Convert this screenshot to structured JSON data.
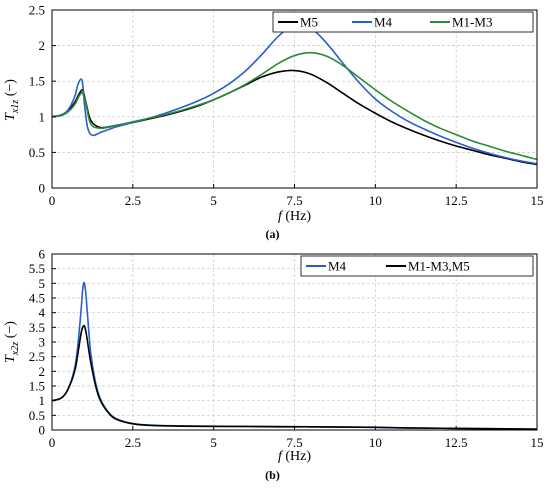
{
  "chart_data": [
    {
      "type": "line",
      "caption": "(a)",
      "ylabel_symbol": "T",
      "ylabel_subscript": "x1z",
      "ylabel_unit": " (−)",
      "xlabel_symbol": "f",
      "xlabel_unit": " (Hz)",
      "xlim": [
        0,
        15
      ],
      "ylim": [
        0,
        2.5
      ],
      "xticks": [
        0,
        2.5,
        5,
        7.5,
        10,
        12.5,
        15
      ],
      "xtick_labels": [
        "0",
        "2.5",
        "5",
        "7.5",
        "10",
        "12.5",
        "15"
      ],
      "yticks": [
        0,
        0.5,
        1,
        1.5,
        2,
        2.5
      ],
      "ytick_labels": [
        "0",
        "0.5",
        "1",
        "1.5",
        "2",
        "2.5"
      ],
      "grid": true,
      "legend_position": "top-right",
      "series": [
        {
          "name": "M5",
          "color": "#000000",
          "x": [
            0,
            0.3,
            0.5,
            0.7,
            0.85,
            0.95,
            1.05,
            1.2,
            1.5,
            2,
            2.5,
            3,
            3.5,
            4,
            4.5,
            5,
            5.5,
            6,
            6.5,
            7,
            7.5,
            8,
            8.5,
            9,
            9.5,
            10,
            10.5,
            11,
            11.5,
            12,
            12.5,
            13,
            13.5,
            14,
            14.5,
            15
          ],
          "y": [
            1.0,
            1.02,
            1.08,
            1.2,
            1.33,
            1.37,
            1.2,
            0.95,
            0.85,
            0.88,
            0.92,
            0.97,
            1.02,
            1.08,
            1.15,
            1.24,
            1.34,
            1.45,
            1.56,
            1.63,
            1.65,
            1.6,
            1.48,
            1.33,
            1.18,
            1.05,
            0.93,
            0.83,
            0.74,
            0.66,
            0.59,
            0.53,
            0.47,
            0.42,
            0.37,
            0.33
          ]
        },
        {
          "name": "M4",
          "color": "#2a5ec8",
          "x": [
            0,
            0.3,
            0.5,
            0.7,
            0.8,
            0.9,
            0.95,
            1.0,
            1.1,
            1.25,
            1.5,
            2,
            2.5,
            3,
            3.5,
            4,
            4.5,
            5,
            5.5,
            6,
            6.5,
            7,
            7.5,
            8,
            8.5,
            9,
            9.5,
            10,
            10.5,
            11,
            11.5,
            12,
            12.5,
            13,
            13.5,
            14,
            14.5,
            15
          ],
          "y": [
            1.0,
            1.03,
            1.1,
            1.28,
            1.45,
            1.53,
            1.45,
            1.2,
            0.85,
            0.74,
            0.78,
            0.86,
            0.92,
            0.98,
            1.05,
            1.13,
            1.22,
            1.33,
            1.47,
            1.65,
            1.88,
            2.13,
            2.3,
            2.25,
            2.03,
            1.75,
            1.48,
            1.25,
            1.08,
            0.94,
            0.83,
            0.73,
            0.64,
            0.56,
            0.49,
            0.43,
            0.38,
            0.34
          ]
        },
        {
          "name": "M1-M3",
          "color": "#2b8a36",
          "x": [
            0,
            0.3,
            0.5,
            0.7,
            0.85,
            0.95,
            1.05,
            1.2,
            1.5,
            2,
            2.5,
            3,
            3.5,
            4,
            4.5,
            5,
            5.5,
            6,
            6.5,
            7,
            7.5,
            8,
            8.5,
            9,
            9.5,
            10,
            10.5,
            11,
            11.5,
            12,
            12.5,
            13,
            13.5,
            14,
            14.5,
            15
          ],
          "y": [
            1.0,
            1.02,
            1.07,
            1.17,
            1.3,
            1.33,
            1.18,
            0.9,
            0.84,
            0.88,
            0.93,
            0.98,
            1.03,
            1.09,
            1.16,
            1.24,
            1.34,
            1.46,
            1.6,
            1.75,
            1.86,
            1.9,
            1.85,
            1.72,
            1.55,
            1.38,
            1.22,
            1.08,
            0.95,
            0.84,
            0.75,
            0.66,
            0.59,
            0.52,
            0.46,
            0.4
          ]
        }
      ]
    },
    {
      "type": "line",
      "caption": "(b)",
      "ylabel_symbol": "T",
      "ylabel_subscript": "x2z",
      "ylabel_unit": " (−)",
      "xlabel_symbol": "f",
      "xlabel_unit": " (Hz)",
      "xlim": [
        0,
        15
      ],
      "ylim": [
        0,
        6
      ],
      "xticks": [
        0,
        2.5,
        5,
        7.5,
        10,
        12.5,
        15
      ],
      "xtick_labels": [
        "0",
        "2.5",
        "5",
        "7.5",
        "10",
        "12.5",
        "15"
      ],
      "yticks": [
        0,
        0.5,
        1,
        1.5,
        2,
        2.5,
        3,
        3.5,
        4,
        4.5,
        5,
        5.5,
        6
      ],
      "ytick_labels": [
        "0",
        "0.5",
        "1",
        "1.5",
        "2",
        "2.5",
        "3",
        "3.5",
        "4",
        "4.5",
        "5",
        "5.5",
        "6"
      ],
      "grid": true,
      "legend_position": "top-right",
      "series": [
        {
          "name": "M4",
          "color": "#2a5ec8",
          "x": [
            0,
            0.3,
            0.5,
            0.7,
            0.8,
            0.9,
            0.95,
            1.0,
            1.05,
            1.1,
            1.2,
            1.35,
            1.5,
            1.75,
            2,
            2.5,
            3,
            4,
            5,
            6,
            7,
            8,
            9,
            10,
            11,
            12,
            13,
            14,
            15
          ],
          "y": [
            1.0,
            1.1,
            1.4,
            2.1,
            2.9,
            4.1,
            4.8,
            5.02,
            4.6,
            3.9,
            2.6,
            1.6,
            1.05,
            0.6,
            0.38,
            0.22,
            0.17,
            0.14,
            0.13,
            0.12,
            0.12,
            0.11,
            0.1,
            0.09,
            0.07,
            0.06,
            0.05,
            0.04,
            0.03
          ]
        },
        {
          "name": "M1-M3,M5",
          "color": "#000000",
          "x": [
            0,
            0.3,
            0.5,
            0.7,
            0.8,
            0.9,
            0.95,
            1.0,
            1.05,
            1.1,
            1.2,
            1.35,
            1.5,
            1.75,
            2,
            2.5,
            3,
            4,
            5,
            6,
            7,
            8,
            9,
            10,
            11,
            12,
            13,
            14,
            15
          ],
          "y": [
            1.0,
            1.1,
            1.4,
            2.0,
            2.6,
            3.3,
            3.5,
            3.55,
            3.35,
            3.0,
            2.3,
            1.5,
            1.0,
            0.58,
            0.36,
            0.21,
            0.16,
            0.13,
            0.12,
            0.12,
            0.11,
            0.11,
            0.1,
            0.09,
            0.07,
            0.06,
            0.05,
            0.04,
            0.03
          ]
        }
      ]
    }
  ]
}
